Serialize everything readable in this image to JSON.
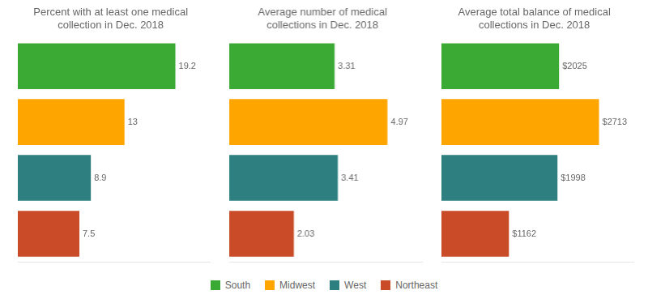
{
  "chart_data": [
    {
      "type": "bar",
      "orientation": "horizontal",
      "title": "Percent with at least one medical\ncollection in Dec. 2018",
      "categories": [
        "South",
        "Midwest",
        "West",
        "Northeast"
      ],
      "values": [
        19.2,
        13.0,
        8.9,
        7.5
      ],
      "colors": [
        "#3aaa35",
        "#ffa500",
        "#2e7f7f",
        "#c94b27"
      ],
      "xlim": [
        0,
        23.424
      ],
      "data_labels": true,
      "tick_labels": false,
      "grid": false
    },
    {
      "type": "bar",
      "orientation": "horizontal",
      "title": "Average number of medical\ncollections in Dec. 2018",
      "categories": [
        "South",
        "Midwest",
        "West",
        "Northeast"
      ],
      "values": [
        3.31,
        4.97,
        3.41,
        2.03
      ],
      "colors": [
        "#3aaa35",
        "#ffa500",
        "#2e7f7f",
        "#c94b27"
      ],
      "xlim": [
        0,
        6.0634
      ],
      "data_labels": true,
      "tick_labels": false,
      "grid": false,
      "legend": "bottom"
    },
    {
      "type": "bar",
      "orientation": "horizontal",
      "title": "Average total balance of medical\ncollections in Dec. 2018",
      "categories": [
        "South",
        "Midwest",
        "West",
        "Northeast"
      ],
      "values": [
        2025,
        2713,
        1998,
        1162
      ],
      "value_labels": [
        "$2025",
        "$2713",
        "$1998",
        "$1162"
      ],
      "colors": [
        "#3aaa35",
        "#ffa500",
        "#2e7f7f",
        "#c94b27"
      ],
      "xlim": [
        0,
        3309.86
      ],
      "data_labels": true,
      "tick_labels": false,
      "grid": false
    }
  ]
}
